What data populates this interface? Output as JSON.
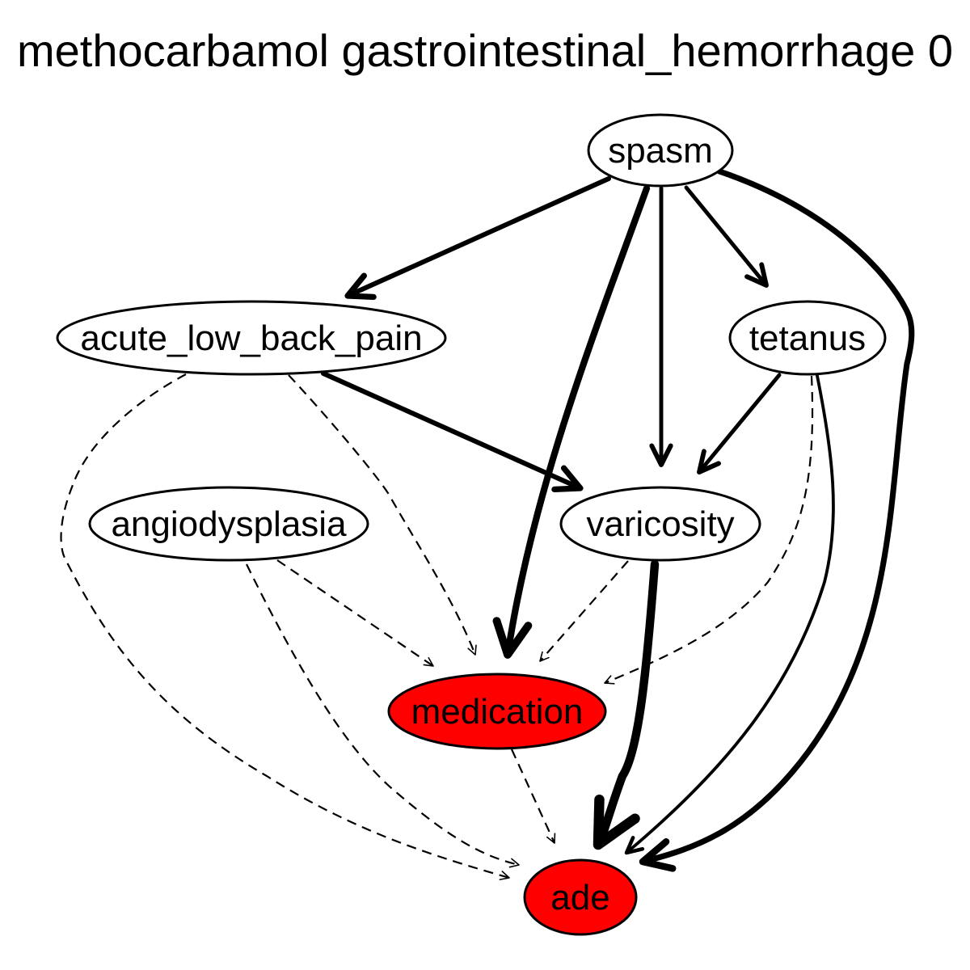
{
  "title": "methocarbamol gastrointestinal_hemorrhage 0",
  "colors": {
    "highlight": "#ff0000",
    "plain": "#ffffff",
    "stroke": "#000000"
  },
  "nodes": [
    {
      "id": "spasm",
      "label": "spasm",
      "highlight": false
    },
    {
      "id": "acute_low_back_pain",
      "label": "acute_low_back_pain",
      "highlight": false
    },
    {
      "id": "tetanus",
      "label": "tetanus",
      "highlight": false
    },
    {
      "id": "angiodysplasia",
      "label": "angiodysplasia",
      "highlight": false
    },
    {
      "id": "varicosity",
      "label": "varicosity",
      "highlight": false
    },
    {
      "id": "medication",
      "label": "medication",
      "highlight": true
    },
    {
      "id": "ade",
      "label": "ade",
      "highlight": true
    }
  ],
  "edges": [
    {
      "from": "spasm",
      "to": "acute_low_back_pain",
      "style": "solid",
      "weight": 4
    },
    {
      "from": "spasm",
      "to": "medication",
      "style": "solid",
      "weight": 6
    },
    {
      "from": "spasm",
      "to": "varicosity",
      "style": "solid",
      "weight": 3
    },
    {
      "from": "spasm",
      "to": "tetanus",
      "style": "solid",
      "weight": 3
    },
    {
      "from": "spasm",
      "to": "ade",
      "style": "solid",
      "weight": 5
    },
    {
      "from": "acute_low_back_pain",
      "to": "varicosity",
      "style": "solid",
      "weight": 4
    },
    {
      "from": "acute_low_back_pain",
      "to": "medication",
      "style": "dashed",
      "weight": 1
    },
    {
      "from": "acute_low_back_pain",
      "to": "ade",
      "style": "dashed",
      "weight": 1
    },
    {
      "from": "tetanus",
      "to": "varicosity",
      "style": "solid",
      "weight": 3
    },
    {
      "from": "tetanus",
      "to": "medication",
      "style": "dashed",
      "weight": 1
    },
    {
      "from": "tetanus",
      "to": "ade",
      "style": "solid",
      "weight": 2
    },
    {
      "from": "angiodysplasia",
      "to": "medication",
      "style": "dashed",
      "weight": 1
    },
    {
      "from": "angiodysplasia",
      "to": "ade",
      "style": "dashed",
      "weight": 1
    },
    {
      "from": "varicosity",
      "to": "medication",
      "style": "dashed",
      "weight": 1
    },
    {
      "from": "varicosity",
      "to": "ade",
      "style": "solid",
      "weight": 8
    },
    {
      "from": "medication",
      "to": "ade",
      "style": "dashed",
      "weight": 1
    }
  ]
}
